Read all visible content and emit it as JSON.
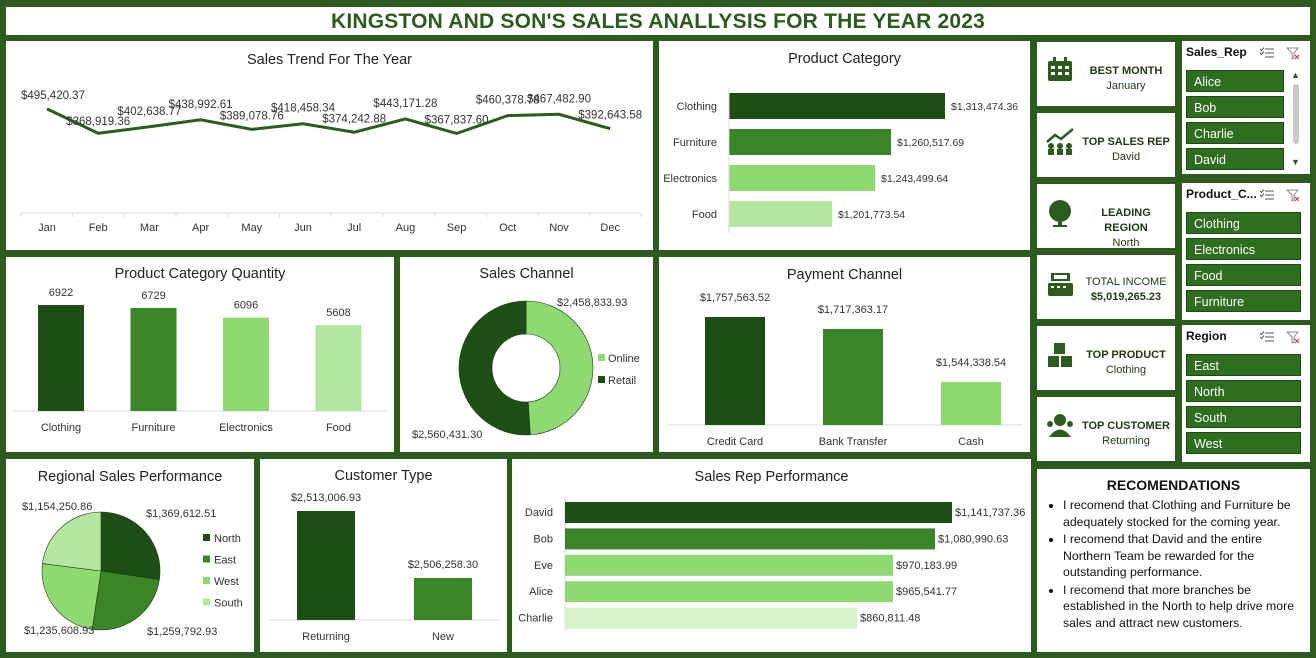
{
  "header": {
    "title": "KINGSTON AND SON'S SALES ANALLYSIS FOR THE YEAR 2023"
  },
  "colors": {
    "dark": "#1e4d15",
    "mid": "#3a8528",
    "light": "#8fd973",
    "pale": "#b5e6a0",
    "palest": "#d6f2c8",
    "bg": "#2d5a1f"
  },
  "sales_trend": {
    "title": "Sales Trend For The Year",
    "chart_data": {
      "type": "line",
      "categories": [
        "Jan",
        "Feb",
        "Mar",
        "Apr",
        "May",
        "Jun",
        "Jul",
        "Aug",
        "Sep",
        "Oct",
        "Nov",
        "Dec"
      ],
      "values": [
        495420.37,
        368919.36,
        402638.77,
        438992.61,
        389078.76,
        418458.34,
        374242.88,
        443171.28,
        367837.6,
        460378.78,
        467482.9,
        392643.58
      ],
      "labels": [
        "$495,420.37",
        "$368,919.36",
        "$402,638.77",
        "$438,992.61",
        "$389,078.76",
        "$418,458.34",
        "$374,242.88",
        "$443,171.28",
        "$367,837.60",
        "$460,378.78",
        "$467,482.90",
        "$392,643.58"
      ],
      "ylim": [
        0,
        520000
      ]
    }
  },
  "product_category": {
    "title": "Product Category",
    "chart_data": {
      "type": "bar",
      "orientation": "horizontal",
      "categories": [
        "Clothing",
        "Furniture",
        "Electronics",
        "Food"
      ],
      "values": [
        1313474.36,
        1260517.69,
        1243499.64,
        1201773.54
      ],
      "labels": [
        "$1,313,474.36",
        "$1,260,517.69",
        "$1,243,499.64",
        "$1,201,773.54"
      ],
      "colors": [
        "#1e4d15",
        "#3a8528",
        "#8fd973",
        "#b5e6a0"
      ],
      "xlim": [
        0,
        1800000
      ]
    }
  },
  "category_quantity": {
    "title": "Product Category Quantity",
    "chart_data": {
      "type": "bar",
      "categories": [
        "Clothing",
        "Furniture",
        "Electronics",
        "Food"
      ],
      "values": [
        6922,
        6729,
        6096,
        5608
      ],
      "labels": [
        "6922",
        "6729",
        "6096",
        "5608"
      ],
      "colors": [
        "#1e4d15",
        "#3a8528",
        "#8fd973",
        "#b5e6a0"
      ],
      "ylim": [
        0,
        7500
      ]
    }
  },
  "sales_channel": {
    "title": "Sales  Channel",
    "chart_data": {
      "type": "pie",
      "donut": true,
      "categories": [
        "Online",
        "Retail"
      ],
      "values": [
        2458833.93,
        2560431.3
      ],
      "labels": [
        "$2,458,833.93",
        "$2,560,431.30"
      ],
      "colors": [
        "#8fd973",
        "#1e4d15"
      ],
      "legend": "right"
    }
  },
  "payment_channel": {
    "title": "Payment Channel",
    "chart_data": {
      "type": "bar",
      "categories": [
        "Credit Card",
        "Bank Transfer",
        "Cash"
      ],
      "values": [
        1757563.52,
        1717363.17,
        1544338.54
      ],
      "labels": [
        "$1,757,563.52",
        "$1,717,363.17",
        "$1,544,338.54"
      ],
      "colors": [
        "#1e4d15",
        "#3a8528",
        "#8fd973"
      ],
      "ylim": [
        1000000,
        1800000
      ]
    }
  },
  "regional": {
    "title": "Regional Sales Performance",
    "chart_data": {
      "type": "pie",
      "categories": [
        "North",
        "East",
        "West",
        "South"
      ],
      "values": [
        1369612.51,
        1259792.93,
        1235608.93,
        1154250.86
      ],
      "labels": [
        "$1,369,612.51",
        "$1,259,792.93",
        "$1,235,608.93",
        "$1,154,250.86"
      ],
      "colors": [
        "#1e4d15",
        "#3a8528",
        "#8fd973",
        "#b5e6a0"
      ],
      "legend": "right"
    }
  },
  "customer_type": {
    "title": "Customer Type",
    "chart_data": {
      "type": "bar",
      "categories": [
        "Returning",
        "New"
      ],
      "values": [
        2513006.93,
        2506258.3
      ],
      "labels": [
        "$2,513,006.93",
        "$2,506,258.30"
      ],
      "colors": [
        "#1e4d15",
        "#3a8528"
      ],
      "ylim": [
        2490000,
        2515000
      ]
    }
  },
  "sales_rep": {
    "title": "Sales Rep Performance",
    "chart_data": {
      "type": "bar",
      "orientation": "horizontal",
      "categories": [
        "David",
        "Bob",
        "Eve",
        "Alice",
        "Charlie"
      ],
      "values": [
        1141737.36,
        1080990.63,
        970183.99,
        965541.77,
        860811.48
      ],
      "labels": [
        "$1,141,737.36",
        "$1,080,990.63",
        "$970,183.99",
        "$965,541.77",
        "$860,811.48"
      ],
      "colors": [
        "#1e4d15",
        "#3a8528",
        "#8fd973",
        "#8fd973",
        "#d6f2c8"
      ],
      "xlim": [
        0,
        1150000
      ]
    }
  },
  "kpis": [
    {
      "label": "BEST MONTH",
      "value": "January",
      "icon": "calendar-icon"
    },
    {
      "label": "TOP SALES REP",
      "value": "David",
      "icon": "team-growth-icon"
    },
    {
      "label": "LEADING REGION",
      "value": "North",
      "icon": "globe-icon"
    },
    {
      "label": "TOTAL INCOME",
      "value": "$5,019,265.23",
      "icon": "cash-register-icon"
    },
    {
      "label": "TOP PRODUCT",
      "value": "Clothing",
      "icon": "boxes-icon"
    },
    {
      "label": "TOP CUSTOMER",
      "value": "Returning",
      "icon": "customer-icon"
    }
  ],
  "slicers": [
    {
      "title": "Sales_Rep",
      "items": [
        "Alice",
        "Bob",
        "Charlie",
        "David"
      ]
    },
    {
      "title": "Product_C...",
      "items": [
        "Clothing",
        "Electronics",
        "Food",
        "Furniture"
      ]
    },
    {
      "title": "Region",
      "items": [
        "East",
        "North",
        "South",
        "West"
      ]
    }
  ],
  "recommendations": {
    "title": "RECOMENDATIONS",
    "items": [
      "I recomend that Clothing and Furniture be adequately stocked for the coming year.",
      "I recomend that David and the entire Northern Team be rewarded for the outstanding performance.",
      "I recomend that more branches be established in the North to help drive more sales and attract new customers."
    ]
  }
}
